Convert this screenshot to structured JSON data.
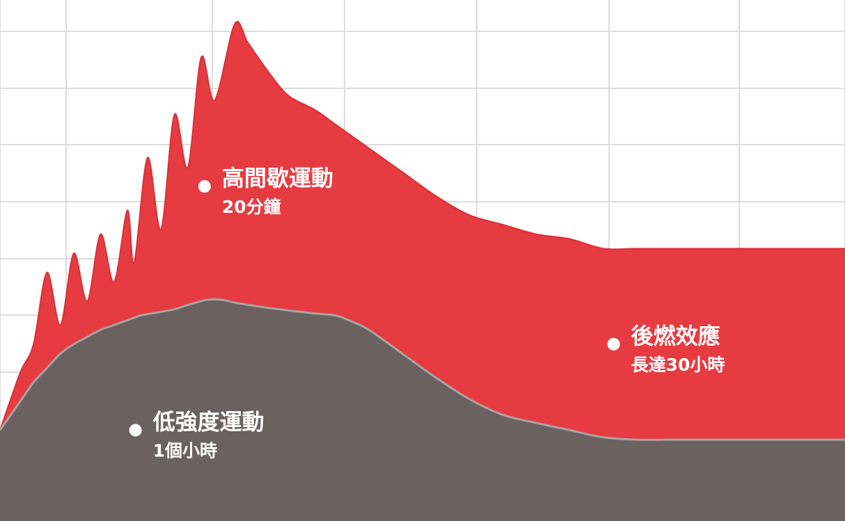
{
  "chart_data": {
    "type": "area",
    "grid": true,
    "colors": {
      "high_intensity": "#e63b41",
      "low_intensity": "#6b6160",
      "grid": "#dcdcdc",
      "dot": "#ffffff",
      "label": "#ffffff"
    },
    "series": [
      {
        "key": "high_intensity",
        "points": [
          [
            0,
            10
          ],
          [
            3,
            22
          ],
          [
            5,
            28
          ],
          [
            7,
            43
          ],
          [
            9,
            32
          ],
          [
            11,
            47
          ],
          [
            13,
            37
          ],
          [
            15,
            51
          ],
          [
            17,
            41
          ],
          [
            19,
            56
          ],
          [
            20,
            45
          ],
          [
            22,
            67
          ],
          [
            24,
            52
          ],
          [
            26,
            76
          ],
          [
            28,
            65
          ],
          [
            30,
            88
          ],
          [
            32,
            79
          ],
          [
            35,
            95
          ],
          [
            37,
            91
          ],
          [
            40,
            85
          ],
          [
            43,
            80
          ],
          [
            47,
            77
          ],
          [
            50,
            74
          ],
          [
            55,
            69
          ],
          [
            60,
            64
          ],
          [
            65,
            59
          ],
          [
            70,
            55
          ],
          [
            75,
            53
          ],
          [
            80,
            51
          ],
          [
            85,
            50
          ],
          [
            90,
            48
          ],
          [
            95,
            48
          ],
          [
            100,
            48
          ],
          [
            110,
            48
          ],
          [
            126,
            48
          ]
        ]
      },
      {
        "key": "low_intensity",
        "points": [
          [
            0,
            10
          ],
          [
            3,
            16
          ],
          [
            5,
            20
          ],
          [
            7,
            23
          ],
          [
            9,
            26
          ],
          [
            11,
            28
          ],
          [
            13,
            29.5
          ],
          [
            15,
            31
          ],
          [
            17,
            32
          ],
          [
            19,
            33
          ],
          [
            21,
            34
          ],
          [
            23,
            34.5
          ],
          [
            26,
            35.3
          ],
          [
            28,
            36.2
          ],
          [
            30,
            37
          ],
          [
            31,
            37.3
          ],
          [
            33,
            37.3
          ],
          [
            35,
            36.7
          ],
          [
            38,
            36
          ],
          [
            41,
            35.4
          ],
          [
            44,
            34.9
          ],
          [
            47,
            34.4
          ],
          [
            50,
            34
          ],
          [
            52,
            33
          ],
          [
            55,
            31
          ],
          [
            60,
            26
          ],
          [
            65,
            21
          ],
          [
            70,
            16.5
          ],
          [
            75,
            13.2
          ],
          [
            80,
            11.5
          ],
          [
            85,
            10
          ],
          [
            90,
            8.5
          ],
          [
            95,
            8
          ],
          [
            100,
            8
          ],
          [
            110,
            8
          ],
          [
            126,
            8
          ]
        ]
      }
    ],
    "xlim": [
      0,
      126
    ],
    "ylim": [
      -9,
      100
    ],
    "annotations": [
      {
        "key": "hiit",
        "title": "高間歇運動",
        "subtitle": "20分鐘",
        "x": 30.5,
        "y": 61
      },
      {
        "key": "afterburn",
        "title": "後燃效應",
        "subtitle": "長達30小時",
        "x": 91.5,
        "y": 28
      },
      {
        "key": "low",
        "title": "低強度運動",
        "subtitle": "1個小時",
        "x": 20.2,
        "y": 10
      }
    ]
  }
}
